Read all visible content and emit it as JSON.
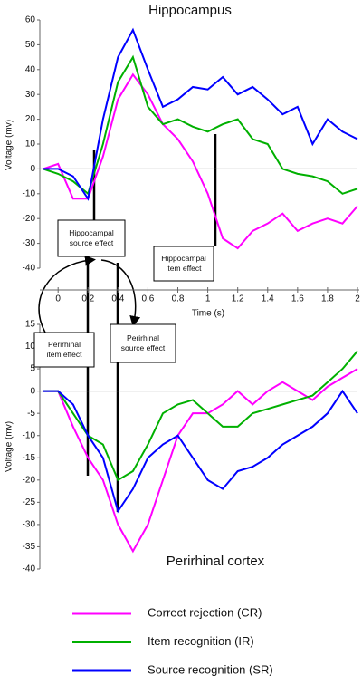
{
  "chart_data": [
    {
      "type": "line",
      "title": "Hippocampus",
      "x_label": "Time (s)",
      "y_label": "Voltage (mv)",
      "x": [
        -0.1,
        0,
        0.1,
        0.2,
        0.3,
        0.4,
        0.5,
        0.6,
        0.7,
        0.8,
        0.9,
        1.0,
        1.1,
        1.2,
        1.3,
        1.4,
        1.5,
        1.6,
        1.7,
        1.8,
        1.9,
        2.0
      ],
      "series": [
        {
          "color": "#ff00ff",
          "values": [
            0,
            2,
            -12,
            -12,
            5,
            28,
            38,
            30,
            18,
            12,
            3,
            -10,
            -28,
            -32,
            -25,
            -22,
            -18,
            -25,
            -22,
            -20,
            -22,
            -15
          ]
        },
        {
          "color": "#00b000",
          "values": [
            0,
            -2,
            -5,
            -10,
            10,
            35,
            45,
            25,
            18,
            20,
            17,
            15,
            18,
            20,
            12,
            10,
            0,
            -2,
            -3,
            -5,
            -10,
            -8
          ]
        },
        {
          "color": "#0000ff",
          "values": [
            0,
            0,
            -3,
            -12,
            20,
            45,
            56,
            40,
            25,
            28,
            33,
            32,
            37,
            30,
            33,
            28,
            22,
            25,
            10,
            20,
            15,
            12
          ]
        }
      ],
      "xlim": [
        -0.11,
        2
      ],
      "xticks": [
        0,
        0.2,
        0.4,
        0.6,
        0.8,
        1,
        1.2,
        1.4,
        1.6,
        1.8,
        2
      ],
      "ylim": [
        -40,
        60
      ],
      "yticks": [
        -40,
        -30,
        -20,
        -10,
        0,
        10,
        20,
        30,
        40,
        50,
        60
      ],
      "annotations": [
        [
          "Hippocampal",
          "source effect"
        ],
        [
          "Hippocampal",
          "item effect"
        ]
      ]
    },
    {
      "type": "line",
      "title": "Perirhinal cortex",
      "y_label": "Voltage (mv)",
      "x": [
        -0.1,
        0,
        0.1,
        0.2,
        0.3,
        0.4,
        0.5,
        0.6,
        0.7,
        0.8,
        0.9,
        1.0,
        1.1,
        1.2,
        1.3,
        1.4,
        1.5,
        1.6,
        1.7,
        1.8,
        1.9,
        2.0
      ],
      "series": [
        {
          "name": "Correct rejection (CR)",
          "color": "#ff00ff",
          "values": [
            0,
            0,
            -8,
            -15,
            -20,
            -30,
            -36,
            -30,
            -20,
            -10,
            -5,
            -5,
            -3,
            0,
            -3,
            0,
            2,
            0,
            -2,
            1,
            3,
            5
          ]
        },
        {
          "name": "Item recognition (IR)",
          "color": "#00b000",
          "values": [
            0,
            0,
            -5,
            -10,
            -12,
            -20,
            -18,
            -12,
            -5,
            -3,
            -2,
            -5,
            -8,
            -8,
            -5,
            -4,
            -3,
            -2,
            -1,
            2,
            5,
            9
          ]
        },
        {
          "name": "Source recognition (SR)",
          "color": "#0000ff",
          "values": [
            0,
            0,
            -3,
            -10,
            -15,
            -27,
            -22,
            -15,
            -12,
            -10,
            -15,
            -20,
            -22,
            -18,
            -17,
            -15,
            -12,
            -10,
            -8,
            -5,
            0,
            -5
          ]
        }
      ],
      "xlim": [
        -0.11,
        2
      ],
      "ylim": [
        -40,
        15
      ],
      "yticks": [
        -40,
        -35,
        -30,
        -25,
        -20,
        -15,
        -10,
        -5,
        0,
        5,
        10,
        15
      ],
      "annotations": [
        [
          "Perirhinal",
          "item effect"
        ],
        [
          "Perirhinal",
          "source effect"
        ]
      ]
    }
  ]
}
